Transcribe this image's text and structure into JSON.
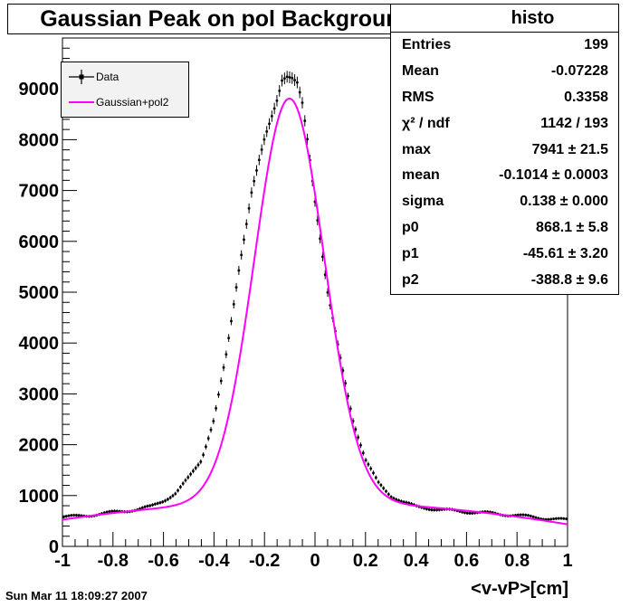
{
  "title": "Gaussian Peak on pol Background",
  "stats": {
    "name": "histo",
    "rows": [
      {
        "label": "Entries",
        "value": "199"
      },
      {
        "label": "Mean",
        "value": "-0.07228"
      },
      {
        "label": "RMS",
        "value": "0.3358"
      },
      {
        "label": "χ² / ndf",
        "value": "1142 / 193"
      },
      {
        "label": "max",
        "value": "7941 ± 21.5"
      },
      {
        "label": "mean",
        "value": "-0.1014 ± 0.0003"
      },
      {
        "label": "sigma",
        "value": "0.138 ± 0.000"
      },
      {
        "label": "p0",
        "value": "868.1 ± 5.8"
      },
      {
        "label": "p1",
        "value": "-45.61 ± 3.20"
      },
      {
        "label": "p2",
        "value": "-388.8 ± 9.6"
      }
    ]
  },
  "legend": {
    "data_label": "Data",
    "fit_label": "Gaussian+pol2"
  },
  "date": "Sun Mar 11 18:09:27 2007",
  "chart_data": {
    "type": "scatter",
    "title": "Gaussian Peak on pol Background",
    "xlabel": "<v-vP>[cm]",
    "ylabel": "",
    "xlim": [
      -1,
      1
    ],
    "ylim": [
      0,
      10000
    ],
    "xticks": [
      "-1",
      "-0.8",
      "-0.6",
      "-0.4",
      "-0.2",
      "0",
      "0.2",
      "0.4",
      "0.6",
      "0.8",
      "1"
    ],
    "yticks": [
      "0",
      "1000",
      "2000",
      "3000",
      "4000",
      "5000",
      "6000",
      "7000",
      "8000",
      "9000"
    ],
    "grid": false,
    "legend_position": "top-left",
    "series": [
      {
        "name": "Data",
        "color": "#000000",
        "marker": "cross-errorbar",
        "x": [
          -0.99,
          -0.95,
          -0.9,
          -0.85,
          -0.8,
          -0.75,
          -0.7,
          -0.65,
          -0.6,
          -0.55,
          -0.5,
          -0.45,
          -0.4,
          -0.35,
          -0.3,
          -0.25,
          -0.2,
          -0.15,
          -0.13,
          -0.11,
          -0.09,
          -0.07,
          -0.05,
          -0.03,
          0.0,
          0.05,
          0.1,
          0.15,
          0.2,
          0.25,
          0.3,
          0.35,
          0.4,
          0.5,
          0.6,
          0.7,
          0.8,
          0.9,
          0.99
        ],
        "y": [
          580,
          590,
          610,
          640,
          670,
          700,
          730,
          780,
          900,
          1050,
          1350,
          1700,
          2500,
          3800,
          5500,
          7000,
          8000,
          8800,
          9200,
          9250,
          9200,
          9100,
          8700,
          8000,
          6800,
          5000,
          3700,
          2500,
          1700,
          1250,
          1000,
          870,
          780,
          720,
          680,
          650,
          610,
          560,
          520
        ]
      },
      {
        "name": "Gaussian+pol2",
        "color": "#ff00ff",
        "marker": "line",
        "function": "max*exp(-0.5*((x-mean)/sigma)^2) + p0 + p1*x + p2*x^2",
        "params": {
          "max": 7941,
          "mean": -0.1014,
          "sigma": 0.138,
          "p0": 868.1,
          "p1": -45.61,
          "p2": -388.8
        }
      }
    ]
  }
}
